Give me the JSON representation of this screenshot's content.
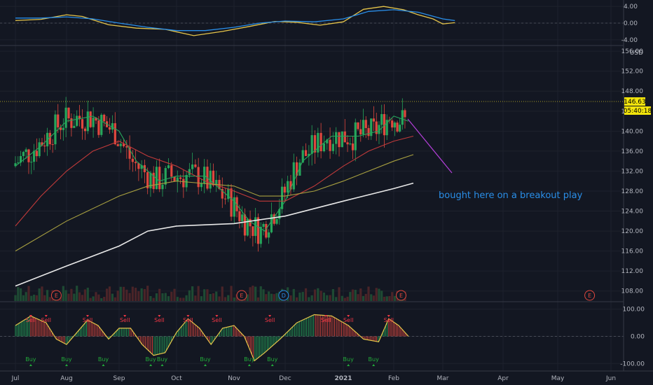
{
  "chart_data": [
    {
      "type": "line",
      "panel": "oscillator",
      "y_ticks": [
        "4.00",
        "0.00",
        "-4.00"
      ],
      "ylim": [
        -5.2,
        5.2
      ],
      "series": [
        {
          "color": "#e5c44a",
          "points": [
            [
              0,
              0.6
            ],
            [
              0.5,
              0.9
            ],
            [
              1,
              2.0
            ],
            [
              1.3,
              1.6
            ],
            [
              1.8,
              -0.4
            ],
            [
              2.3,
              -1.2
            ],
            [
              2.8,
              -1.5
            ],
            [
              3.3,
              -3.0
            ],
            [
              3.8,
              -2.0
            ],
            [
              4.3,
              -0.8
            ],
            [
              4.8,
              0.4
            ],
            [
              5.2,
              0.2
            ],
            [
              5.6,
              -0.5
            ],
            [
              6.0,
              0.3
            ],
            [
              6.4,
              3.3
            ],
            [
              6.8,
              4.0
            ],
            [
              7.2,
              3.2
            ],
            [
              7.5,
              2.0
            ],
            [
              7.8,
              1.0
            ],
            [
              8.0,
              -0.2
            ],
            [
              8.2,
              0.1
            ]
          ]
        },
        {
          "color": "#2a8ee8",
          "points": [
            [
              0,
              1.2
            ],
            [
              0.5,
              1.2
            ],
            [
              1,
              1.5
            ],
            [
              1.5,
              1.0
            ],
            [
              2.0,
              0.0
            ],
            [
              2.5,
              -1.0
            ],
            [
              3.0,
              -1.8
            ],
            [
              3.5,
              -1.8
            ],
            [
              4.0,
              -1.0
            ],
            [
              4.5,
              0.0
            ],
            [
              5.0,
              0.5
            ],
            [
              5.5,
              0.3
            ],
            [
              6.0,
              1.0
            ],
            [
              6.5,
              2.8
            ],
            [
              7.0,
              3.2
            ],
            [
              7.5,
              2.6
            ],
            [
              8.0,
              1.0
            ],
            [
              8.2,
              0.6
            ]
          ]
        }
      ]
    },
    {
      "type": "candlestick",
      "panel": "price",
      "x_ticks": [
        "Jul",
        "Aug",
        "Sep",
        "Oct",
        "Nov",
        "Dec",
        "2021",
        "Feb",
        "Mar",
        "Apr",
        "May",
        "Jun"
      ],
      "y_label": "USD",
      "y_ticks": [
        "156.00",
        "152.00",
        "148.00",
        "144.00",
        "140.00",
        "136.00",
        "132.00",
        "128.00",
        "124.00",
        "120.00",
        "116.00",
        "112.00",
        "108.00"
      ],
      "ylim": [
        106,
        157
      ],
      "last_price": "146.63",
      "countdown": "05:40:18",
      "annotation": "bought here on a breakout play",
      "events": [
        {
          "label": "E",
          "month": 0.8,
          "kind": "earnings"
        },
        {
          "label": "E",
          "month": 4.15,
          "kind": "earnings"
        },
        {
          "label": "D",
          "month": 4.97,
          "kind": "dividend"
        },
        {
          "label": "E",
          "month": 7.15,
          "kind": "earnings"
        },
        {
          "label": "E",
          "month": 10.6,
          "kind": "earnings"
        }
      ],
      "moving_averages": [
        {
          "color": "#26a65b",
          "points": [
            [
              0,
              133
            ],
            [
              0.5,
              137
            ],
            [
              1,
              142
            ],
            [
              1.5,
              143
            ],
            [
              2.0,
              140
            ],
            [
              2.3,
              134
            ],
            [
              2.7,
              130
            ],
            [
              3.0,
              131
            ],
            [
              3.5,
              131
            ],
            [
              4.0,
              126
            ],
            [
              4.3,
              122
            ],
            [
              4.6,
              120
            ],
            [
              5.0,
              126
            ],
            [
              5.3,
              134
            ],
            [
              5.8,
              139
            ],
            [
              6.3,
              139
            ],
            [
              6.7,
              140
            ],
            [
              7.0,
              143
            ],
            [
              7.3,
              142
            ]
          ]
        },
        {
          "color": "#c03a3a",
          "points": [
            [
              0,
              121
            ],
            [
              0.5,
              127
            ],
            [
              1,
              132
            ],
            [
              1.5,
              136
            ],
            [
              2.0,
              138
            ],
            [
              2.5,
              135
            ],
            [
              3.0,
              133
            ],
            [
              3.5,
              130
            ],
            [
              4.0,
              128
            ],
            [
              4.5,
              126
            ],
            [
              5.0,
              126
            ],
            [
              5.5,
              129
            ],
            [
              6.0,
              133
            ],
            [
              6.5,
              136
            ],
            [
              7.0,
              138
            ],
            [
              7.4,
              139
            ]
          ]
        },
        {
          "color": "#a8a040",
          "points": [
            [
              0,
              116
            ],
            [
              1,
              122
            ],
            [
              2,
              127
            ],
            [
              2.5,
              129
            ],
            [
              3,
              130
            ],
            [
              4,
              129
            ],
            [
              4.5,
              127
            ],
            [
              5.0,
              127
            ],
            [
              5.5,
              128
            ],
            [
              6,
              130
            ],
            [
              7,
              134
            ],
            [
              7.4,
              135.3
            ]
          ]
        },
        {
          "color": "#e8e8e8",
          "points": [
            [
              0,
              109
            ],
            [
              1,
              113
            ],
            [
              2,
              117
            ],
            [
              2.5,
              120
            ],
            [
              3,
              121
            ],
            [
              4,
              121.5
            ],
            [
              5,
              123
            ],
            [
              6,
              126
            ],
            [
              7,
              128.5
            ],
            [
              7.4,
              129.6
            ]
          ]
        }
      ]
    },
    {
      "type": "area",
      "panel": "signal-oscillator",
      "y_ticks": [
        "100.00",
        "0.00",
        "-100.00"
      ],
      "ylim": [
        -125,
        125
      ],
      "sell_label": "Sell",
      "buy_label": "Buy",
      "sell_months": [
        0.3,
        0.6,
        1.4,
        2.1,
        2.7,
        3.2,
        3.7,
        4.7,
        5.7,
        6.1,
        6.9
      ],
      "buy_months": [
        0.3,
        1.0,
        1.7,
        2.55,
        2.75,
        3.5,
        4.3,
        4.75,
        6.1,
        6.6
      ],
      "oscillator": [
        [
          0,
          40
        ],
        [
          0.3,
          75
        ],
        [
          0.6,
          50
        ],
        [
          0.8,
          -10
        ],
        [
          1.0,
          -30
        ],
        [
          1.2,
          15
        ],
        [
          1.4,
          60
        ],
        [
          1.6,
          40
        ],
        [
          1.8,
          -10
        ],
        [
          2.0,
          30
        ],
        [
          2.2,
          30
        ],
        [
          2.4,
          -30
        ],
        [
          2.6,
          -70
        ],
        [
          2.8,
          -60
        ],
        [
          3.0,
          15
        ],
        [
          3.2,
          65
        ],
        [
          3.4,
          30
        ],
        [
          3.6,
          -30
        ],
        [
          3.8,
          30
        ],
        [
          4.0,
          40
        ],
        [
          4.2,
          0
        ],
        [
          4.4,
          -90
        ],
        [
          4.6,
          -60
        ],
        [
          4.9,
          -10
        ],
        [
          5.2,
          50
        ],
        [
          5.5,
          80
        ],
        [
          5.8,
          75
        ],
        [
          6.1,
          40
        ],
        [
          6.4,
          -10
        ],
        [
          6.7,
          -20
        ],
        [
          6.9,
          65
        ],
        [
          7.1,
          40
        ],
        [
          7.3,
          0
        ]
      ]
    }
  ]
}
